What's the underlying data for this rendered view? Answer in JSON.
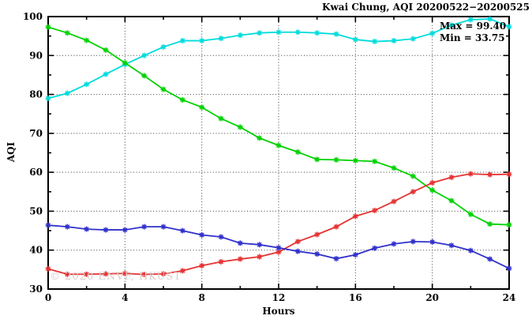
{
  "title": "Kwai Chung, AQI 20200522−20200525",
  "annotations": {
    "max_label": "Max = 99.40",
    "min_label": "Min = 33.75"
  },
  "watermark": "© 2020 ENVF, HKUST",
  "axes": {
    "x_label": "Hours",
    "y_label": "AQI"
  },
  "chart_data": {
    "type": "line",
    "title": "Kwai Chung, AQI 20200522−20200525",
    "xlabel": "Hours",
    "ylabel": "AQI",
    "xlim": [
      0,
      24
    ],
    "ylim": [
      30,
      100
    ],
    "x_ticks": [
      0,
      4,
      8,
      12,
      16,
      20,
      24
    ],
    "x_minor_step": 2,
    "y_ticks": [
      30,
      40,
      50,
      60,
      70,
      80,
      90,
      100
    ],
    "y_minor_step": 5,
    "grid": "dotted-at-major-ticks",
    "legend_position": "top-right-inset-text",
    "max": 99.4,
    "min": 33.75,
    "x": [
      0,
      1,
      2,
      3,
      4,
      5,
      6,
      7,
      8,
      9,
      10,
      11,
      12,
      13,
      14,
      15,
      16,
      17,
      18,
      19,
      20,
      21,
      22,
      23,
      24
    ],
    "series": [
      {
        "name": "cyan-series",
        "color": "#00dcdc",
        "values": [
          79.0,
          80.3,
          82.6,
          85.2,
          87.7,
          90.0,
          92.2,
          93.8,
          93.8,
          94.4,
          95.2,
          95.8,
          96.0,
          96.0,
          95.8,
          95.5,
          94.1,
          93.6,
          93.8,
          94.3,
          95.7,
          97.8,
          99.2,
          99.4,
          97.4
        ]
      },
      {
        "name": "green-series",
        "color": "#00d200",
        "values": [
          97.3,
          95.8,
          93.9,
          91.4,
          88.1,
          84.8,
          81.3,
          78.6,
          76.7,
          73.8,
          71.6,
          68.8,
          66.9,
          65.2,
          63.3,
          63.2,
          63.0,
          62.8,
          61.1,
          59.0,
          55.4,
          52.7,
          49.2,
          46.7,
          46.5
        ]
      },
      {
        "name": "red-series",
        "color": "#e53333",
        "values": [
          35.2,
          33.8,
          33.8,
          33.9,
          34.0,
          33.75,
          33.9,
          34.7,
          36.0,
          37.0,
          37.7,
          38.3,
          39.5,
          42.2,
          44.0,
          46.0,
          48.7,
          50.2,
          52.5,
          55.0,
          57.3,
          58.7,
          59.6,
          59.4,
          59.5
        ]
      },
      {
        "name": "blue-series",
        "color": "#3030cc",
        "values": [
          46.4,
          46.0,
          45.4,
          45.2,
          45.2,
          46.0,
          46.0,
          45.0,
          43.9,
          43.4,
          41.8,
          41.4,
          40.6,
          39.7,
          39.0,
          37.8,
          38.8,
          40.5,
          41.6,
          42.2,
          42.1,
          41.2,
          39.9,
          37.7,
          35.3
        ]
      }
    ]
  }
}
